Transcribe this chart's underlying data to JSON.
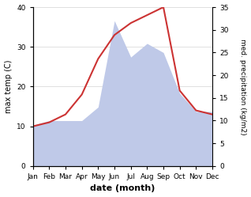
{
  "months": [
    "Jan",
    "Feb",
    "Mar",
    "Apr",
    "May",
    "Jun",
    "Jul",
    "Aug",
    "Sep",
    "Oct",
    "Nov",
    "Dec"
  ],
  "temperature": [
    10,
    11,
    13,
    18,
    27,
    33,
    36,
    38,
    40,
    19,
    14,
    13
  ],
  "precipitation": [
    9,
    10,
    10,
    10,
    13,
    32,
    24,
    27,
    25,
    16,
    12,
    12
  ],
  "temp_color": "#cc3333",
  "precip_fill_color": "#bfc9e8",
  "xlabel": "date (month)",
  "ylabel_left": "max temp (C)",
  "ylabel_right": "med. precipitation (kg/m2)",
  "ylim_left": [
    0,
    40
  ],
  "ylim_right": [
    0,
    35
  ],
  "yticks_left": [
    0,
    10,
    20,
    30,
    40
  ],
  "yticks_right": [
    0,
    5,
    10,
    15,
    20,
    25,
    30,
    35
  ],
  "scale_factor": 1.142857
}
